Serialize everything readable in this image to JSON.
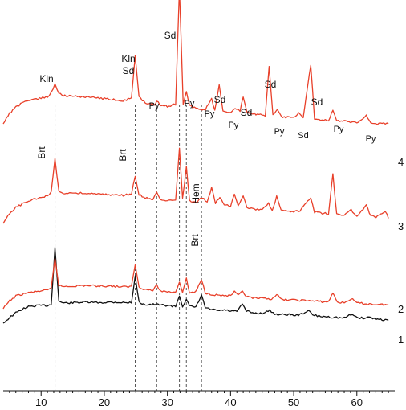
{
  "chart_data": {
    "type": "line",
    "title": "",
    "xlabel": "",
    "ylabel": "",
    "xlim": [
      4,
      66
    ],
    "x_ticks": [
      10,
      20,
      30,
      40,
      50,
      60
    ],
    "grid": false,
    "legend": "none",
    "colors": {
      "red": "#e8402a",
      "black": "#111111",
      "guide": "#555555"
    },
    "series": [
      {
        "name": "1",
        "color": "#111111",
        "points": [
          [
            4,
            0.0
          ],
          [
            5,
            0.12
          ],
          [
            6,
            0.22
          ],
          [
            7,
            0.3
          ],
          [
            8,
            0.35
          ],
          [
            9,
            0.37
          ],
          [
            10,
            0.38
          ],
          [
            11,
            0.38
          ],
          [
            11.6,
            0.4
          ],
          [
            12.2,
            1.62
          ],
          [
            12.8,
            0.48
          ],
          [
            13.5,
            0.43
          ],
          [
            15,
            0.44
          ],
          [
            17,
            0.45
          ],
          [
            19,
            0.44
          ],
          [
            21,
            0.45
          ],
          [
            22,
            0.45
          ],
          [
            23,
            0.44
          ],
          [
            24.3,
            0.44
          ],
          [
            24.9,
            1.0
          ],
          [
            25.5,
            0.45
          ],
          [
            26.5,
            0.4
          ],
          [
            28,
            0.4
          ],
          [
            30,
            0.38
          ],
          [
            31.3,
            0.36
          ],
          [
            31.9,
            0.59
          ],
          [
            32.4,
            0.36
          ],
          [
            33.0,
            0.52
          ],
          [
            33.5,
            0.36
          ],
          [
            34.5,
            0.34
          ],
          [
            35.4,
            0.6
          ],
          [
            36.0,
            0.33
          ],
          [
            37,
            0.29
          ],
          [
            38,
            0.27
          ],
          [
            39,
            0.28
          ],
          [
            40,
            0.26
          ],
          [
            41,
            0.25
          ],
          [
            41.9,
            0.41
          ],
          [
            42.5,
            0.26
          ],
          [
            43.5,
            0.22
          ],
          [
            45,
            0.21
          ],
          [
            46.2,
            0.27
          ],
          [
            47,
            0.2
          ],
          [
            48,
            0.18
          ],
          [
            49,
            0.19
          ],
          [
            50,
            0.17
          ],
          [
            51,
            0.18
          ],
          [
            52.3,
            0.27
          ],
          [
            53,
            0.18
          ],
          [
            54,
            0.15
          ],
          [
            56,
            0.13
          ],
          [
            58,
            0.11
          ],
          [
            59.3,
            0.2
          ],
          [
            60,
            0.12
          ],
          [
            61,
            0.11
          ],
          [
            62,
            0.13
          ],
          [
            63,
            0.09
          ],
          [
            64,
            0.08
          ],
          [
            65,
            0.06
          ]
        ]
      },
      {
        "name": "2",
        "color": "#e8402a",
        "points": [
          [
            4,
            0.0
          ],
          [
            5,
            0.16
          ],
          [
            6,
            0.26
          ],
          [
            7,
            0.3
          ],
          [
            8,
            0.33
          ],
          [
            9,
            0.35
          ],
          [
            10,
            0.37
          ],
          [
            11,
            0.38
          ],
          [
            11.6,
            0.42
          ],
          [
            12.2,
            1.05
          ],
          [
            12.8,
            0.48
          ],
          [
            13.5,
            0.46
          ],
          [
            15,
            0.47
          ],
          [
            17,
            0.48
          ],
          [
            19,
            0.47
          ],
          [
            21,
            0.47
          ],
          [
            23,
            0.45
          ],
          [
            24.3,
            0.46
          ],
          [
            24.9,
            0.92
          ],
          [
            25.5,
            0.45
          ],
          [
            26.5,
            0.4
          ],
          [
            27.7,
            0.38
          ],
          [
            28.3,
            0.48
          ],
          [
            28.9,
            0.37
          ],
          [
            30,
            0.35
          ],
          [
            31.3,
            0.35
          ],
          [
            31.9,
            0.55
          ],
          [
            32.4,
            0.35
          ],
          [
            33.0,
            0.62
          ],
          [
            33.5,
            0.33
          ],
          [
            34.5,
            0.35
          ],
          [
            35.4,
            0.6
          ],
          [
            36.0,
            0.33
          ],
          [
            37,
            0.3
          ],
          [
            38,
            0.28
          ],
          [
            39,
            0.27
          ],
          [
            40,
            0.27
          ],
          [
            40.6,
            0.35
          ],
          [
            41.2,
            0.27
          ],
          [
            41.9,
            0.36
          ],
          [
            42.5,
            0.25
          ],
          [
            43.5,
            0.22
          ],
          [
            45,
            0.21
          ],
          [
            46.5,
            0.2
          ],
          [
            47.3,
            0.3
          ],
          [
            48,
            0.19
          ],
          [
            50,
            0.18
          ],
          [
            52,
            0.17
          ],
          [
            54,
            0.15
          ],
          [
            55.5,
            0.14
          ],
          [
            56.2,
            0.33
          ],
          [
            56.9,
            0.14
          ],
          [
            58,
            0.12
          ],
          [
            59.1,
            0.21
          ],
          [
            60,
            0.12
          ],
          [
            61.5,
            0.1
          ],
          [
            63,
            0.09
          ],
          [
            65,
            0.08
          ]
        ]
      },
      {
        "name": "3",
        "color": "#e8402a",
        "points": [
          [
            4,
            0.0
          ],
          [
            5,
            0.15
          ],
          [
            6,
            0.25
          ],
          [
            7,
            0.3
          ],
          [
            8,
            0.34
          ],
          [
            9,
            0.38
          ],
          [
            10,
            0.41
          ],
          [
            11,
            0.43
          ],
          [
            11.6,
            0.5
          ],
          [
            12.2,
            1.0
          ],
          [
            12.8,
            0.5
          ],
          [
            13.5,
            0.47
          ],
          [
            15,
            0.48
          ],
          [
            17,
            0.47
          ],
          [
            19,
            0.46
          ],
          [
            21,
            0.45
          ],
          [
            23,
            0.44
          ],
          [
            24.3,
            0.46
          ],
          [
            24.9,
            0.73
          ],
          [
            25.5,
            0.45
          ],
          [
            26.5,
            0.4
          ],
          [
            27.7,
            0.37
          ],
          [
            28.3,
            0.5
          ],
          [
            28.9,
            0.36
          ],
          [
            30,
            0.35
          ],
          [
            31.3,
            0.36
          ],
          [
            31.9,
            1.17
          ],
          [
            32.4,
            0.38
          ],
          [
            33.0,
            0.88
          ],
          [
            33.5,
            0.35
          ],
          [
            34.5,
            0.33
          ],
          [
            35.5,
            0.4
          ],
          [
            36.3,
            0.33
          ],
          [
            37.0,
            0.56
          ],
          [
            37.6,
            0.32
          ],
          [
            38.3,
            0.4
          ],
          [
            39,
            0.29
          ],
          [
            40,
            0.28
          ],
          [
            40.6,
            0.47
          ],
          [
            41.2,
            0.29
          ],
          [
            42.0,
            0.43
          ],
          [
            42.6,
            0.25
          ],
          [
            43.5,
            0.23
          ],
          [
            45,
            0.21
          ],
          [
            46.0,
            0.31
          ],
          [
            46.6,
            0.21
          ],
          [
            47.3,
            0.42
          ],
          [
            48,
            0.2
          ],
          [
            49,
            0.19
          ],
          [
            50,
            0.18
          ],
          [
            51,
            0.2
          ],
          [
            52.7,
            0.41
          ],
          [
            53.3,
            0.18
          ],
          [
            54.5,
            0.16
          ],
          [
            55.5,
            0.15
          ],
          [
            56.2,
            0.77
          ],
          [
            56.8,
            0.15
          ],
          [
            58,
            0.13
          ],
          [
            59.1,
            0.21
          ],
          [
            60,
            0.12
          ],
          [
            61.5,
            0.28
          ],
          [
            62.2,
            0.12
          ],
          [
            63,
            0.09
          ],
          [
            64.5,
            0.19
          ],
          [
            65,
            0.08
          ]
        ]
      },
      {
        "name": "4",
        "color": "#e8402a",
        "points": [
          [
            4,
            0.0
          ],
          [
            5,
            0.16
          ],
          [
            6,
            0.26
          ],
          [
            7,
            0.32
          ],
          [
            8,
            0.36
          ],
          [
            9,
            0.38
          ],
          [
            10,
            0.4
          ],
          [
            11,
            0.42
          ],
          [
            11.6,
            0.48
          ],
          [
            12.2,
            0.62
          ],
          [
            12.8,
            0.47
          ],
          [
            13.5,
            0.44
          ],
          [
            15,
            0.43
          ],
          [
            17,
            0.42
          ],
          [
            19,
            0.4
          ],
          [
            21,
            0.38
          ],
          [
            23,
            0.36
          ],
          [
            24.3,
            0.4
          ],
          [
            24.9,
            1.05
          ],
          [
            25.5,
            0.42
          ],
          [
            26.5,
            0.32
          ],
          [
            28,
            0.3
          ],
          [
            28.3,
            0.36
          ],
          [
            29,
            0.29
          ],
          [
            30,
            0.27
          ],
          [
            31.3,
            0.3
          ],
          [
            31.9,
            2.1
          ],
          [
            32.5,
            0.3
          ],
          [
            33.0,
            0.5
          ],
          [
            33.5,
            0.28
          ],
          [
            34.5,
            0.24
          ],
          [
            36,
            0.22
          ],
          [
            37.0,
            0.4
          ],
          [
            37.5,
            0.2
          ],
          [
            38.2,
            0.6
          ],
          [
            38.8,
            0.2
          ],
          [
            40,
            0.18
          ],
          [
            40.7,
            0.25
          ],
          [
            41.5,
            0.2
          ],
          [
            42.0,
            0.42
          ],
          [
            42.6,
            0.18
          ],
          [
            44,
            0.15
          ],
          [
            45.5,
            0.13
          ],
          [
            46.1,
            0.9
          ],
          [
            46.7,
            0.13
          ],
          [
            47.4,
            0.22
          ],
          [
            48,
            0.11
          ],
          [
            49,
            0.1
          ],
          [
            50,
            0.09
          ],
          [
            50.8,
            0.18
          ],
          [
            51.5,
            0.09
          ],
          [
            52.7,
            0.92
          ],
          [
            53.3,
            0.08
          ],
          [
            54.5,
            0.06
          ],
          [
            55.5,
            0.05
          ],
          [
            56.2,
            0.2
          ],
          [
            56.8,
            0.05
          ],
          [
            58,
            0.04
          ],
          [
            60,
            0.02
          ],
          [
            61.5,
            0.13
          ],
          [
            62.2,
            0.01
          ],
          [
            63,
            0.0
          ],
          [
            65,
            0.0
          ]
        ]
      }
    ],
    "annotations": [
      {
        "text": "Kln",
        "x": 12.2
      },
      {
        "text": "Kln",
        "x": 24.9
      },
      {
        "text": "Sd",
        "x": 24.9
      },
      {
        "text": "Py",
        "x": 28.3
      },
      {
        "text": "Sd",
        "x": 31.9
      },
      {
        "text": "Py",
        "x": 33.0
      },
      {
        "text": "Py",
        "x": 37.0
      },
      {
        "text": "Sd",
        "x": 38.2
      },
      {
        "text": "Py",
        "x": 40.7
      },
      {
        "text": "Sd",
        "x": 42.0
      },
      {
        "text": "Sd",
        "x": 46.1
      },
      {
        "text": "Py",
        "x": 47.4
      },
      {
        "text": "Sd",
        "x": 50.8
      },
      {
        "text": "Sd",
        "x": 52.7
      },
      {
        "text": "Py",
        "x": 56.2
      },
      {
        "text": "Py",
        "x": 61.5
      },
      {
        "text": "Brt",
        "x": 12.2
      },
      {
        "text": "Brt",
        "x": 24.9
      },
      {
        "text": "Hem",
        "x": 33.0
      },
      {
        "text": "Brt",
        "x": 35.4
      }
    ],
    "reference_lines_x": [
      12.2,
      24.9,
      28.3,
      31.9,
      33.0,
      35.4
    ]
  }
}
